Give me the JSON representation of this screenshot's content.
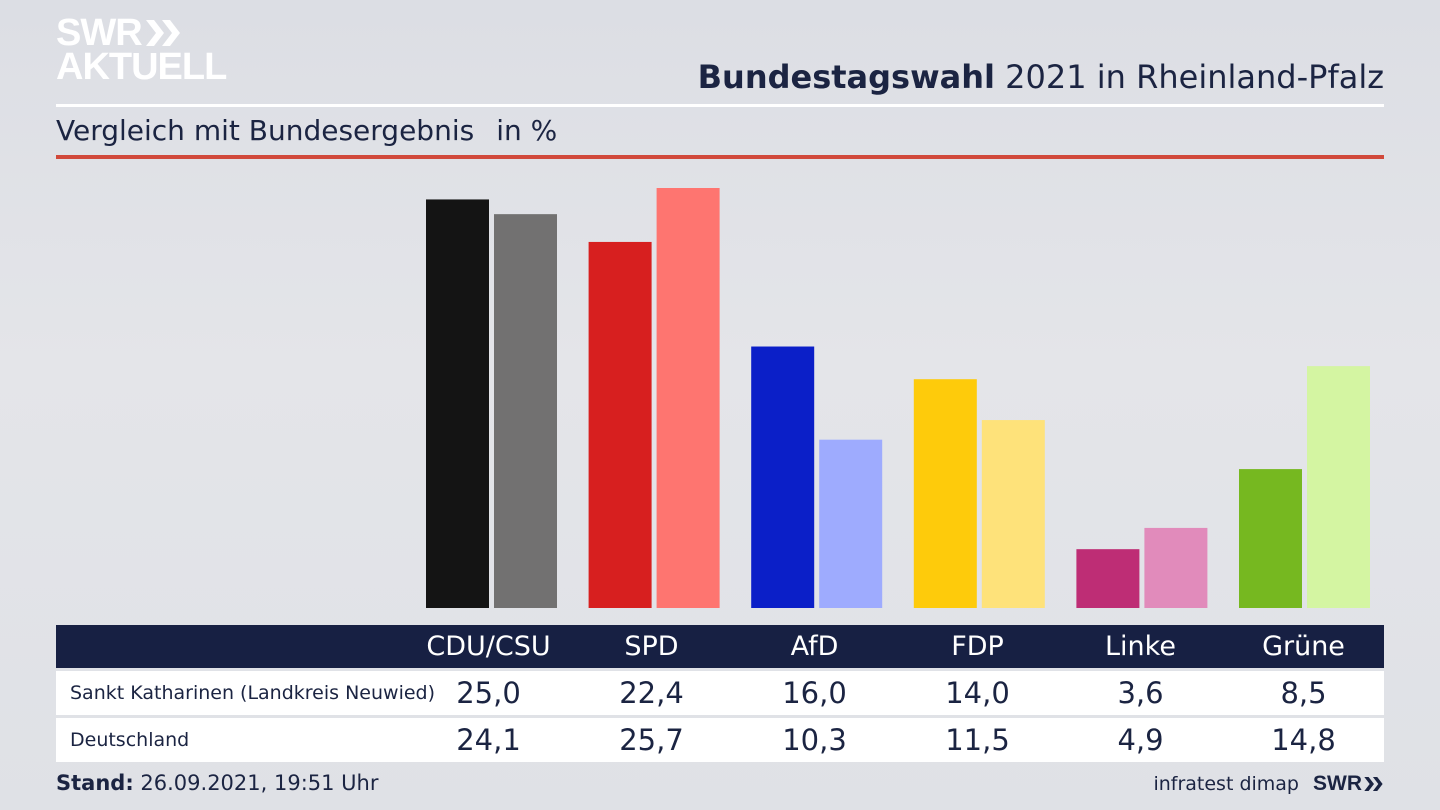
{
  "header": {
    "logo_line1": "SWR",
    "logo_line2": "AKTUELL",
    "title_bold": "Bundestagswahl",
    "title_rest": " 2021 in Rheinland-Pfalz",
    "subtitle": "Vergleich mit Bundesergebnis",
    "unit": "in %"
  },
  "chart_data": {
    "type": "bar",
    "title": "Bundestagswahl 2021 in Rheinland-Pfalz",
    "subtitle": "Vergleich mit Bundesergebnis in %",
    "categories": [
      "CDU/CSU",
      "SPD",
      "AfD",
      "FDP",
      "Linke",
      "Grüne"
    ],
    "series": [
      {
        "name": "Sankt Katharinen (Landkreis Neuwied)",
        "values": [
          25.0,
          22.4,
          16.0,
          14.0,
          3.6,
          8.5
        ],
        "display": [
          "25,0",
          "22,4",
          "16,0",
          "14,0",
          "3,6",
          "8,5"
        ],
        "colors": [
          "#141414",
          "#d71f1f",
          "#0b1fc8",
          "#fecb0b",
          "#be2d75",
          "#76b820"
        ]
      },
      {
        "name": "Deutschland",
        "values": [
          24.1,
          25.7,
          10.3,
          11.5,
          4.9,
          14.8
        ],
        "display": [
          "24,1",
          "25,7",
          "10,3",
          "11,5",
          "4,9",
          "14,8"
        ],
        "colors": [
          "#727171",
          "#fe7570",
          "#9eabfe",
          "#fee27a",
          "#e18bbb",
          "#d4f5a2"
        ]
      }
    ],
    "ylim": [
      0,
      25.7
    ],
    "grid": false,
    "legend": "table below chart"
  },
  "footer": {
    "stand_label": "Stand:",
    "stand_value": " 26.09.2021, 19:51 Uhr",
    "source": "infratest dimap",
    "brand": "SWR"
  }
}
